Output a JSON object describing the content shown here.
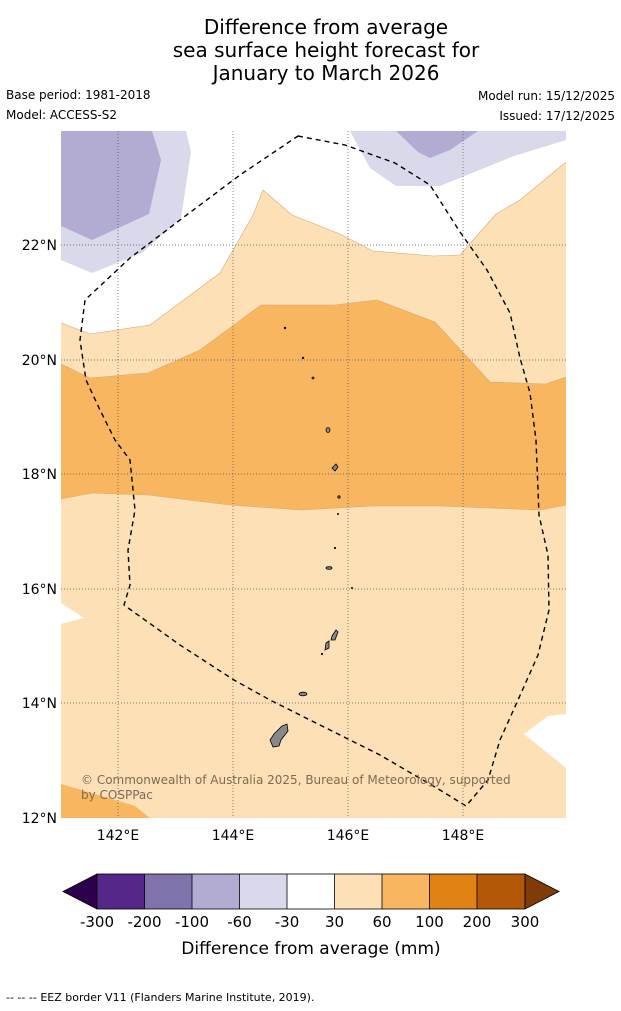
{
  "title": {
    "line1": "Difference from average",
    "line2": "sea surface height forecast for",
    "line3": "January to March 2026"
  },
  "meta": {
    "base_period": "Base period: 1981-2018",
    "model": "Model: ACCESS-S2",
    "model_run": "Model run: 15/12/2025",
    "issued": "Issued: 17/12/2025"
  },
  "map": {
    "lon_range": [
      141.0,
      149.8
    ],
    "lat_range": [
      12.0,
      24.0
    ],
    "lon_ticks": [
      {
        "value": 142,
        "label": "142°E"
      },
      {
        "value": 144,
        "label": "144°E"
      },
      {
        "value": 146,
        "label": "146°E"
      },
      {
        "value": 148,
        "label": "148°E"
      }
    ],
    "lat_ticks": [
      {
        "value": 22,
        "label": "22°N"
      },
      {
        "value": 20,
        "label": "20°N"
      },
      {
        "value": 18,
        "label": "18°N"
      },
      {
        "value": 16,
        "label": "16°N"
      },
      {
        "value": 14,
        "label": "14°N"
      },
      {
        "value": 12,
        "label": "12°N"
      }
    ],
    "copyright_line1": "© Commonwealth of Australia 2025, Bureau of Meteorology, supported",
    "copyright_line2": "by COSPPac"
  },
  "colorbar": {
    "label": "Difference from average (mm)",
    "ticks": [
      "-300",
      "-200",
      "-100",
      "-60",
      "-30",
      "30",
      "60",
      "100",
      "200",
      "300"
    ],
    "colors": [
      "#2d004b",
      "#542788",
      "#8073ac",
      "#b2abd2",
      "#d8daeb",
      "#ffffff",
      "#fde0b6",
      "#f9b660",
      "#e08214",
      "#b35806",
      "#7f3b08"
    ]
  },
  "footer": {
    "line_symbol": "-- -- --",
    "text": "EEZ border V11 (Flanders Marine Institute, 2019)."
  }
}
